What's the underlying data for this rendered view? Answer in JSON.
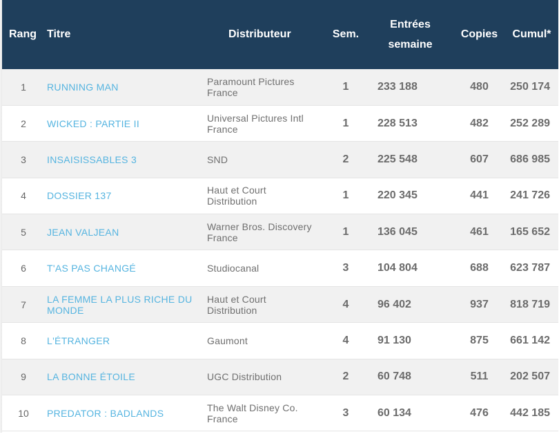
{
  "table": {
    "headers": {
      "rang": "Rang",
      "titre": "Titre",
      "distributeur": "Distributeur",
      "sem": "Sem.",
      "entrees_line1": "Entrées",
      "entrees_line2": "semaine",
      "copies": "Copies",
      "cumul": "Cumul*"
    },
    "rows": [
      {
        "rang": "1",
        "titre": "RUNNING MAN",
        "dist_line1": "Paramount Pictures",
        "dist_line2": "France",
        "sem": "1",
        "entrees": "233 188",
        "copies": "480",
        "cumul": "250 174"
      },
      {
        "rang": "2",
        "titre": "WICKED : PARTIE II",
        "dist_line1": "Universal Pictures Intl",
        "dist_line2": "France",
        "sem": "1",
        "entrees": "228 513",
        "copies": "482",
        "cumul": "252 289"
      },
      {
        "rang": "3",
        "titre": "INSAISISSABLES 3",
        "dist_line1": "SND",
        "dist_line2": "",
        "sem": "2",
        "entrees": "225 548",
        "copies": "607",
        "cumul": "686 985"
      },
      {
        "rang": "4",
        "titre": "DOSSIER 137",
        "dist_line1": "Haut et Court",
        "dist_line2": "Distribution",
        "sem": "1",
        "entrees": "220 345",
        "copies": "441",
        "cumul": "241 726"
      },
      {
        "rang": "5",
        "titre": "JEAN VALJEAN",
        "dist_line1": "Warner Bros. Discovery",
        "dist_line2": "France",
        "sem": "1",
        "entrees": "136 045",
        "copies": "461",
        "cumul": "165 652"
      },
      {
        "rang": "6",
        "titre": "T'AS PAS CHANGÉ",
        "dist_line1": "Studiocanal",
        "dist_line2": "",
        "sem": "3",
        "entrees": "104 804",
        "copies": "688",
        "cumul": "623 787"
      },
      {
        "rang": "7",
        "titre": "LA FEMME LA PLUS RICHE DU MONDE",
        "dist_line1": "Haut et Court",
        "dist_line2": "Distribution",
        "sem": "4",
        "entrees": "96 402",
        "copies": "937",
        "cumul": "818 719"
      },
      {
        "rang": "8",
        "titre": "L'ÉTRANGER",
        "dist_line1": "Gaumont",
        "dist_line2": "",
        "sem": "4",
        "entrees": "91 130",
        "copies": "875",
        "cumul": "661 142"
      },
      {
        "rang": "9",
        "titre": "LA BONNE ÉTOILE",
        "dist_line1": "UGC Distribution",
        "dist_line2": "",
        "sem": "2",
        "entrees": "60 748",
        "copies": "511",
        "cumul": "202 507"
      },
      {
        "rang": "10",
        "titre": "PREDATOR : BADLANDS",
        "dist_line1": "The Walt Disney Co.",
        "dist_line2": "France",
        "sem": "3",
        "entrees": "60 134",
        "copies": "476",
        "cumul": "442 185"
      }
    ]
  },
  "colors": {
    "header_bg": "#1f3f5c",
    "header_text": "#ffffff",
    "title_link": "#55b4e0",
    "row_odd": "#f1f1f1",
    "row_even": "#ffffff"
  }
}
